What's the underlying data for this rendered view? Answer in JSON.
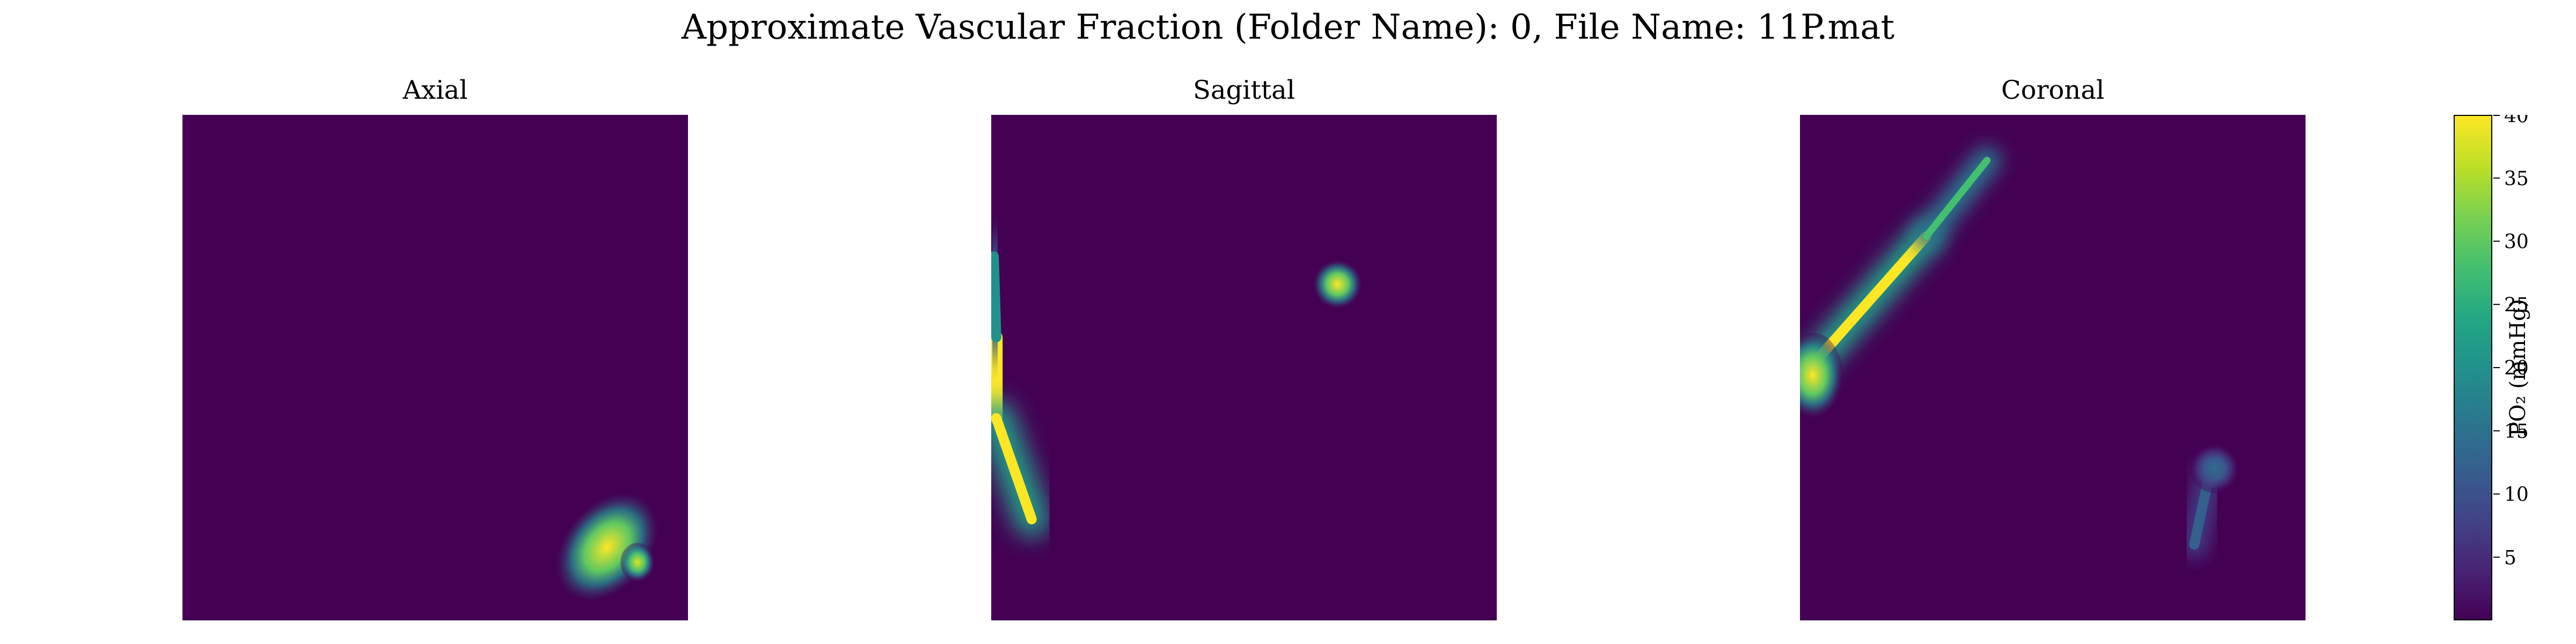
{
  "figure": {
    "suptitle": "Approximate Vascular Fraction (Folder Name): 0, File Name: 11P.mat"
  },
  "chart_data": {
    "type": "heatmap",
    "colormap": "viridis",
    "vmin": 0,
    "vmax": 40,
    "grid": false,
    "axes_visible": false,
    "panels": [
      {
        "title": "Axial",
        "features": [
          {
            "kind": "blob",
            "x": 0.84,
            "y": 0.855,
            "sx": 0.035,
            "sy": 0.05,
            "angle": 40,
            "peak": 40
          },
          {
            "kind": "blob",
            "x": 0.9,
            "y": 0.885,
            "sx": 0.014,
            "sy": 0.016,
            "angle": 0,
            "peak": 38
          }
        ]
      },
      {
        "title": "Sagittal",
        "features": [
          {
            "kind": "line",
            "x1": 0.01,
            "y1": 0.44,
            "x2": 0.01,
            "y2": 0.6,
            "width": 0.025,
            "blur": 0.05,
            "peak": 40
          },
          {
            "kind": "line",
            "x1": 0.01,
            "y1": 0.6,
            "x2": 0.08,
            "y2": 0.8,
            "width": 0.02,
            "blur": 0.05,
            "peak": 40
          },
          {
            "kind": "line",
            "x1": 0.005,
            "y1": 0.28,
            "x2": 0.01,
            "y2": 0.44,
            "width": 0.02,
            "blur": 0.06,
            "peak": 20
          },
          {
            "kind": "blob",
            "x": 0.685,
            "y": 0.335,
            "sx": 0.02,
            "sy": 0.02,
            "angle": 0,
            "peak": 40
          }
        ]
      },
      {
        "title": "Coronal",
        "features": [
          {
            "kind": "line",
            "x1": 0.02,
            "y1": 0.5,
            "x2": 0.25,
            "y2": 0.24,
            "width": 0.02,
            "blur": 0.045,
            "peak": 40
          },
          {
            "kind": "line",
            "x1": 0.25,
            "y1": 0.24,
            "x2": 0.37,
            "y2": 0.09,
            "width": 0.014,
            "blur": 0.04,
            "peak": 28
          },
          {
            "kind": "blob",
            "x": 0.025,
            "y": 0.515,
            "sx": 0.025,
            "sy": 0.035,
            "angle": 0,
            "peak": 40
          },
          {
            "kind": "line",
            "x1": 0.81,
            "y1": 0.71,
            "x2": 0.78,
            "y2": 0.85,
            "width": 0.02,
            "blur": 0.035,
            "peak": 12
          },
          {
            "kind": "blob",
            "x": 0.82,
            "y": 0.7,
            "sx": 0.02,
            "sy": 0.02,
            "angle": 0,
            "peak": 14
          }
        ]
      }
    ],
    "colorbar": {
      "ticks": [
        5,
        10,
        15,
        20,
        25,
        30,
        35,
        40
      ],
      "label": "PO₂ (mmHg)"
    }
  }
}
